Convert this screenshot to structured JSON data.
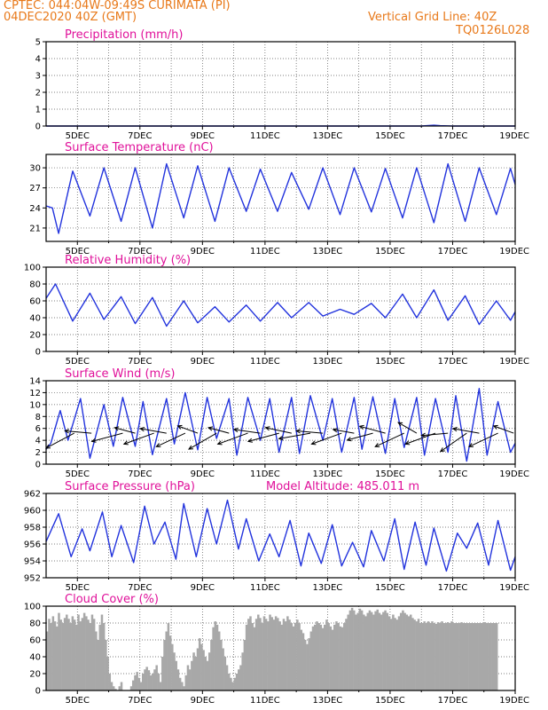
{
  "header": {
    "source_line": "CPTEC:   044:04W-09:49S   CURIMATA (PI)",
    "date_line": "04DEC2020 40Z (GMT)",
    "grid_line": "Vertical Grid Line: 40Z",
    "code": "TQ0126L028"
  },
  "colors": {
    "line": "#2233dd",
    "title": "#e0119a",
    "header": "#e8791a",
    "bar": "#a8a8a8",
    "arrow": "#000000"
  },
  "chart_data": [
    {
      "type": "line",
      "title": "Precipitation (mm/h)",
      "xlabel": "",
      "ylabel": "",
      "x_range": [
        4,
        19
      ],
      "x_ticks": [
        "5DEC",
        "7DEC",
        "9DEC",
        "11DEC",
        "13DEC",
        "15DEC",
        "17DEC",
        "19DEC"
      ],
      "ylim": [
        0,
        5
      ],
      "yticks": [
        0,
        1,
        2,
        3,
        4,
        5
      ],
      "grid": true,
      "x": [
        4,
        6,
        8,
        10,
        12,
        14,
        16,
        16.4,
        16.6,
        17,
        19
      ],
      "values": [
        0,
        0,
        0,
        0,
        0,
        0,
        0,
        0.05,
        0.02,
        0,
        0
      ]
    },
    {
      "type": "line",
      "title": "Surface Temperature (nC)",
      "xlabel": "",
      "ylabel": "",
      "x_range": [
        4,
        19
      ],
      "x_ticks": [
        "5DEC",
        "7DEC",
        "9DEC",
        "11DEC",
        "13DEC",
        "15DEC",
        "17DEC",
        "19DEC"
      ],
      "ylim": [
        19,
        32
      ],
      "yticks": [
        21,
        24,
        27,
        30
      ],
      "grid": true,
      "x": [
        4,
        4.2,
        4.4,
        4.85,
        5.4,
        5.85,
        6.4,
        6.85,
        7.4,
        7.85,
        8.4,
        8.85,
        9.4,
        9.85,
        10.4,
        10.85,
        11.4,
        11.85,
        12.4,
        12.85,
        13.4,
        13.85,
        14.4,
        14.85,
        15.4,
        15.85,
        16.4,
        16.85,
        17.4,
        17.85,
        18.4,
        18.85,
        19
      ],
      "values": [
        24.3,
        24,
        20.2,
        29.5,
        22.8,
        30,
        22,
        30,
        21,
        30.6,
        22.5,
        30.3,
        22,
        30,
        23.5,
        29.8,
        23.5,
        29.3,
        23.8,
        30,
        23,
        30,
        23.4,
        29.9,
        22.5,
        30,
        21.8,
        30.6,
        22,
        30,
        23,
        29.9,
        27.5
      ]
    },
    {
      "type": "line",
      "title": "Relative Humidity (%)",
      "xlabel": "",
      "ylabel": "",
      "x_range": [
        4,
        19
      ],
      "x_ticks": [
        "5DEC",
        "7DEC",
        "9DEC",
        "11DEC",
        "13DEC",
        "15DEC",
        "17DEC",
        "19DEC"
      ],
      "ylim": [
        0,
        100
      ],
      "yticks": [
        0,
        20,
        40,
        60,
        80,
        100
      ],
      "grid": true,
      "x": [
        4,
        4.3,
        4.85,
        5.4,
        5.85,
        6.4,
        6.85,
        7.4,
        7.85,
        8.4,
        8.85,
        9.4,
        9.85,
        10.4,
        10.85,
        11.4,
        11.85,
        12.4,
        12.85,
        13.4,
        13.85,
        14.4,
        14.85,
        15.4,
        15.85,
        16.4,
        16.85,
        17.4,
        17.85,
        18.4,
        18.85,
        19
      ],
      "values": [
        63,
        80,
        36,
        69,
        38,
        65,
        33,
        64,
        30,
        60,
        34,
        53,
        35,
        55,
        36,
        58,
        40,
        58,
        42,
        50,
        44,
        57,
        40,
        68,
        40,
        73,
        37,
        66,
        32,
        60,
        37,
        47
      ]
    },
    {
      "type": "line",
      "title": "Surface Wind (m/s)",
      "xlabel": "",
      "ylabel": "",
      "x_range": [
        4,
        19
      ],
      "x_ticks": [
        "5DEC",
        "7DEC",
        "9DEC",
        "11DEC",
        "13DEC",
        "15DEC",
        "17DEC",
        "19DEC"
      ],
      "ylim": [
        0,
        14
      ],
      "yticks": [
        0,
        2,
        4,
        6,
        8,
        10,
        12,
        14
      ],
      "grid": true,
      "x": [
        4,
        4.15,
        4.45,
        4.7,
        5.1,
        5.4,
        5.85,
        6.15,
        6.45,
        6.85,
        7.1,
        7.4,
        7.85,
        8.1,
        8.45,
        8.85,
        9.15,
        9.45,
        9.85,
        10.1,
        10.45,
        10.85,
        11.15,
        11.45,
        11.85,
        12.1,
        12.45,
        12.85,
        13.15,
        13.45,
        13.85,
        14.1,
        14.45,
        14.85,
        15.15,
        15.45,
        15.85,
        16.1,
        16.45,
        16.85,
        17.1,
        17.45,
        17.85,
        18.1,
        18.45,
        18.85,
        19
      ],
      "values": [
        2.5,
        3.5,
        9,
        4,
        11,
        1,
        10,
        3,
        11.2,
        3,
        10.5,
        1.6,
        11,
        3.4,
        12,
        2.4,
        11.2,
        4.3,
        11,
        1.5,
        11.2,
        4,
        11,
        2,
        11.2,
        1.8,
        11.5,
        4,
        11,
        2,
        11.2,
        2.5,
        11.3,
        1.8,
        11,
        2.8,
        11.2,
        1.5,
        11,
        2,
        11.5,
        0.5,
        12.7,
        1.5,
        10.5,
        2,
        3.5
      ],
      "vectors": [
        {
          "x": 4.9,
          "angle": 208,
          "length": 6
        },
        {
          "x": 5.45,
          "angle": 175,
          "length": 5
        },
        {
          "x": 6.45,
          "angle": 195,
          "length": 6
        },
        {
          "x": 6.85,
          "angle": 165,
          "length": 4
        },
        {
          "x": 7.45,
          "angle": 200,
          "length": 6
        },
        {
          "x": 7.85,
          "angle": 170,
          "length": 5
        },
        {
          "x": 8.45,
          "angle": 205,
          "length": 6
        },
        {
          "x": 8.85,
          "angle": 160,
          "length": 4
        },
        {
          "x": 9.45,
          "angle": 210,
          "length": 6
        },
        {
          "x": 9.85,
          "angle": 165,
          "length": 4
        },
        {
          "x": 10.45,
          "angle": 200,
          "length": 6
        },
        {
          "x": 10.85,
          "angle": 172,
          "length": 5
        },
        {
          "x": 11.45,
          "angle": 195,
          "length": 6
        },
        {
          "x": 11.85,
          "angle": 168,
          "length": 5
        },
        {
          "x": 12.45,
          "angle": 190,
          "length": 6
        },
        {
          "x": 12.85,
          "angle": 175,
          "length": 5
        },
        {
          "x": 13.45,
          "angle": 200,
          "length": 6
        },
        {
          "x": 13.85,
          "angle": 170,
          "length": 4
        },
        {
          "x": 14.45,
          "angle": 195,
          "length": 5
        },
        {
          "x": 14.85,
          "angle": 165,
          "length": 5
        },
        {
          "x": 15.45,
          "angle": 205,
          "length": 6
        },
        {
          "x": 15.85,
          "angle": 150,
          "length": 4
        },
        {
          "x": 16.45,
          "angle": 200,
          "length": 6
        },
        {
          "x": 16.85,
          "angle": 185,
          "length": 5
        },
        {
          "x": 17.45,
          "angle": 215,
          "length": 6
        },
        {
          "x": 17.85,
          "angle": 170,
          "length": 5
        },
        {
          "x": 18.45,
          "angle": 205,
          "length": 6
        },
        {
          "x": 18.95,
          "angle": 160,
          "length": 4
        }
      ]
    },
    {
      "type": "line",
      "title": "Surface Pressure (hPa)",
      "annotation": "Model Altitude: 485.011 m",
      "xlabel": "",
      "ylabel": "",
      "x_range": [
        4,
        19
      ],
      "x_ticks": [
        "5DEC",
        "7DEC",
        "9DEC",
        "11DEC",
        "13DEC",
        "15DEC",
        "17DEC",
        "19DEC"
      ],
      "ylim": [
        952,
        962
      ],
      "yticks": [
        952,
        954,
        956,
        958,
        960,
        962
      ],
      "grid": true,
      "x": [
        4,
        4.4,
        4.8,
        5.15,
        5.4,
        5.8,
        6.1,
        6.4,
        6.8,
        7.15,
        7.45,
        7.8,
        8.15,
        8.4,
        8.8,
        9.15,
        9.45,
        9.8,
        10.15,
        10.4,
        10.8,
        11.15,
        11.45,
        11.8,
        12.15,
        12.4,
        12.8,
        13.15,
        13.45,
        13.8,
        14.15,
        14.4,
        14.8,
        15.15,
        15.45,
        15.8,
        16.15,
        16.4,
        16.8,
        17.15,
        17.45,
        17.8,
        18.15,
        18.45,
        18.85,
        19
      ],
      "values": [
        956.3,
        959.6,
        954.5,
        957.8,
        955.2,
        959.8,
        954.5,
        958.2,
        953.8,
        960.5,
        956,
        958.6,
        954.2,
        960.8,
        954.5,
        960.2,
        956,
        961.2,
        955.4,
        959,
        954,
        957.2,
        954.5,
        958.8,
        953.4,
        957.3,
        953.7,
        958.3,
        953.4,
        956.2,
        953.3,
        957.6,
        954,
        959,
        953,
        958.6,
        953.5,
        957.9,
        952.8,
        957.3,
        955.5,
        958.5,
        953.5,
        958.8,
        952.9,
        954.5
      ]
    },
    {
      "type": "bar",
      "title": "Cloud Cover (%)",
      "xlabel": "",
      "ylabel": "",
      "x_range": [
        4,
        19
      ],
      "x_ticks": [
        "5DEC",
        "7DEC",
        "9DEC",
        "11DEC",
        "13DEC",
        "15DEC",
        "17DEC",
        "19DEC"
      ],
      "ylim": [
        0,
        100
      ],
      "yticks": [
        0,
        20,
        40,
        60,
        80,
        100
      ],
      "grid": true,
      "x_step": 0.0625,
      "values": [
        70,
        85,
        80,
        88,
        82,
        76,
        92,
        84,
        80,
        86,
        90,
        85,
        80,
        88,
        84,
        78,
        90,
        82,
        86,
        92,
        88,
        84,
        80,
        90,
        85,
        70,
        60,
        78,
        90,
        80,
        60,
        40,
        20,
        10,
        5,
        2,
        0,
        5,
        10,
        0,
        0,
        0,
        0,
        5,
        12,
        18,
        22,
        15,
        10,
        20,
        25,
        28,
        24,
        18,
        20,
        25,
        30,
        20,
        10,
        40,
        60,
        70,
        80,
        65,
        55,
        45,
        35,
        25,
        15,
        10,
        5,
        18,
        30,
        25,
        35,
        45,
        40,
        50,
        62,
        55,
        48,
        40,
        35,
        45,
        60,
        75,
        82,
        78,
        70,
        60,
        50,
        40,
        30,
        20,
        15,
        10,
        15,
        20,
        25,
        30,
        45,
        60,
        78,
        85,
        88,
        80,
        75,
        85,
        90,
        86,
        80,
        88,
        85,
        82,
        90,
        87,
        84,
        88,
        86,
        82,
        78,
        85,
        82,
        88,
        84,
        80,
        76,
        80,
        84,
        80,
        72,
        68,
        60,
        55,
        62,
        70,
        76,
        78,
        82,
        80,
        78,
        74,
        78,
        84,
        80,
        76,
        72,
        78,
        82,
        80,
        76,
        75,
        80,
        85,
        90,
        95,
        98,
        95,
        90,
        92,
        97,
        95,
        90,
        88,
        92,
        95,
        93,
        90,
        94,
        96,
        92,
        90,
        93,
        95,
        92,
        88,
        85,
        90,
        86,
        84,
        88,
        92,
        95,
        92,
        90,
        88,
        90,
        86,
        84,
        82,
        85,
        80,
        80,
        82,
        80,
        82,
        80,
        82,
        80,
        79,
        81,
        80,
        82,
        80,
        80,
        81,
        80,
        82,
        80,
        80,
        80,
        80,
        81,
        80,
        80,
        80,
        80,
        80,
        80,
        80,
        80,
        80,
        80,
        80,
        81,
        80,
        80,
        80,
        80,
        80,
        80
      ]
    }
  ]
}
